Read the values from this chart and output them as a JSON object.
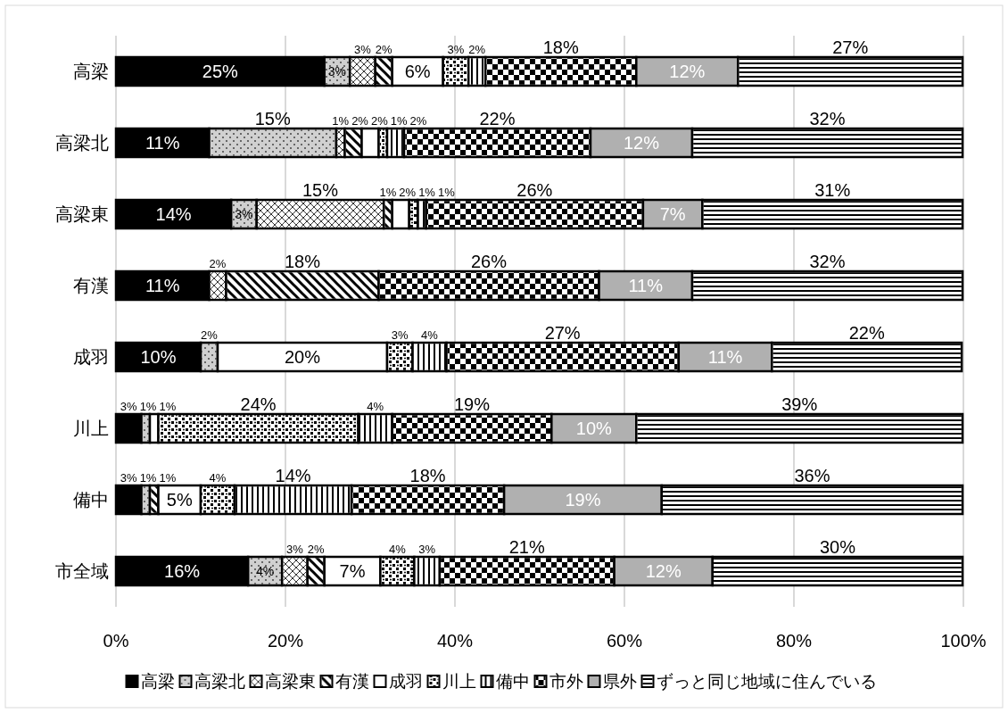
{
  "chart_data": {
    "type": "bar",
    "orientation": "horizontal",
    "stacked": true,
    "grid": "x",
    "legend": "bottom",
    "categories": [
      "高梁",
      "高梁北",
      "高梁東",
      "有漢",
      "成羽",
      "川上",
      "備中",
      "市全域"
    ],
    "xlim": [
      0,
      100
    ],
    "xticks": [
      {
        "value": 0,
        "label": "0%"
      },
      {
        "value": 20,
        "label": "20%"
      },
      {
        "value": 40,
        "label": "40%"
      },
      {
        "value": 60,
        "label": "60%"
      },
      {
        "value": 80,
        "label": "80%"
      },
      {
        "value": 100,
        "label": "100%"
      }
    ],
    "series": [
      {
        "name": "高梁",
        "color": "#000000",
        "values": [
          24.6,
          11,
          13.6,
          11,
          10,
          3,
          3,
          15.6
        ],
        "value_labels": [
          "25%",
          "11%",
          "14%",
          "11%",
          "10%",
          "3%",
          "3%",
          "16%"
        ]
      },
      {
        "name": "高梁北",
        "color": "#d0d0d0",
        "values": [
          3,
          15,
          3,
          0,
          2,
          1,
          1,
          4
        ],
        "value_labels": [
          "3%",
          "15%",
          "3%",
          null,
          "2%",
          "1%",
          "1%",
          "4%"
        ]
      },
      {
        "name": "高梁東",
        "color": "#ffffff",
        "values": [
          3,
          1,
          15,
          2,
          null,
          0,
          0,
          3
        ],
        "value_labels": [
          "3%",
          "1%",
          "15%",
          "2%",
          null,
          null,
          null,
          "3%"
        ]
      },
      {
        "name": "有漢",
        "color": "#ffffff",
        "values": [
          2,
          2,
          1,
          18,
          null,
          0,
          1,
          2
        ],
        "value_labels": [
          "2%",
          "2%",
          "1%",
          "18%",
          null,
          null,
          "1%",
          "2%"
        ]
      },
      {
        "name": "成羽",
        "color": "#ffffff",
        "values": [
          6,
          2,
          2,
          0,
          20,
          1,
          5,
          6.6
        ],
        "value_labels": [
          "6%",
          "2%",
          "2%",
          null,
          "20%",
          "1%",
          "5%",
          "7%"
        ]
      },
      {
        "name": "川上",
        "color": "#ffffff",
        "values": [
          3,
          1,
          1,
          0,
          3,
          23.6,
          4,
          4
        ],
        "value_labels": [
          "3%",
          "1%",
          "1%",
          null,
          "3%",
          "24%",
          "4%",
          "4%"
        ]
      },
      {
        "name": "備中",
        "color": "#ffffff",
        "values": [
          2,
          2,
          1,
          0,
          4,
          4,
          13.8,
          3
        ],
        "value_labels": [
          "2%",
          "2%",
          "1%",
          null,
          "4%",
          "4%",
          "14%",
          "3%"
        ]
      },
      {
        "name": "市外",
        "color": "#ffffff",
        "values": [
          17.8,
          22,
          25.6,
          26,
          27.4,
          18.8,
          18,
          20.6
        ],
        "value_labels": [
          "18%",
          "22%",
          "26%",
          "26%",
          "27%",
          "19%",
          "18%",
          "21%"
        ]
      },
      {
        "name": "県外",
        "color": "#b0b0b0",
        "values": [
          12,
          12,
          7,
          11,
          11,
          10,
          18.6,
          11.6
        ],
        "value_labels": [
          "12%",
          "12%",
          "7%",
          "11%",
          "11%",
          "10%",
          "19%",
          "12%"
        ]
      },
      {
        "name": "ずっと同じ地域に住んでいる",
        "color": "#ffffff",
        "values": [
          26.5,
          31.9,
          30.7,
          31.9,
          22.4,
          38.5,
          35.5,
          29.5
        ],
        "value_labels": [
          "27%",
          "32%",
          "31%",
          "32%",
          "22%",
          "39%",
          "36%",
          "30%"
        ]
      }
    ]
  }
}
